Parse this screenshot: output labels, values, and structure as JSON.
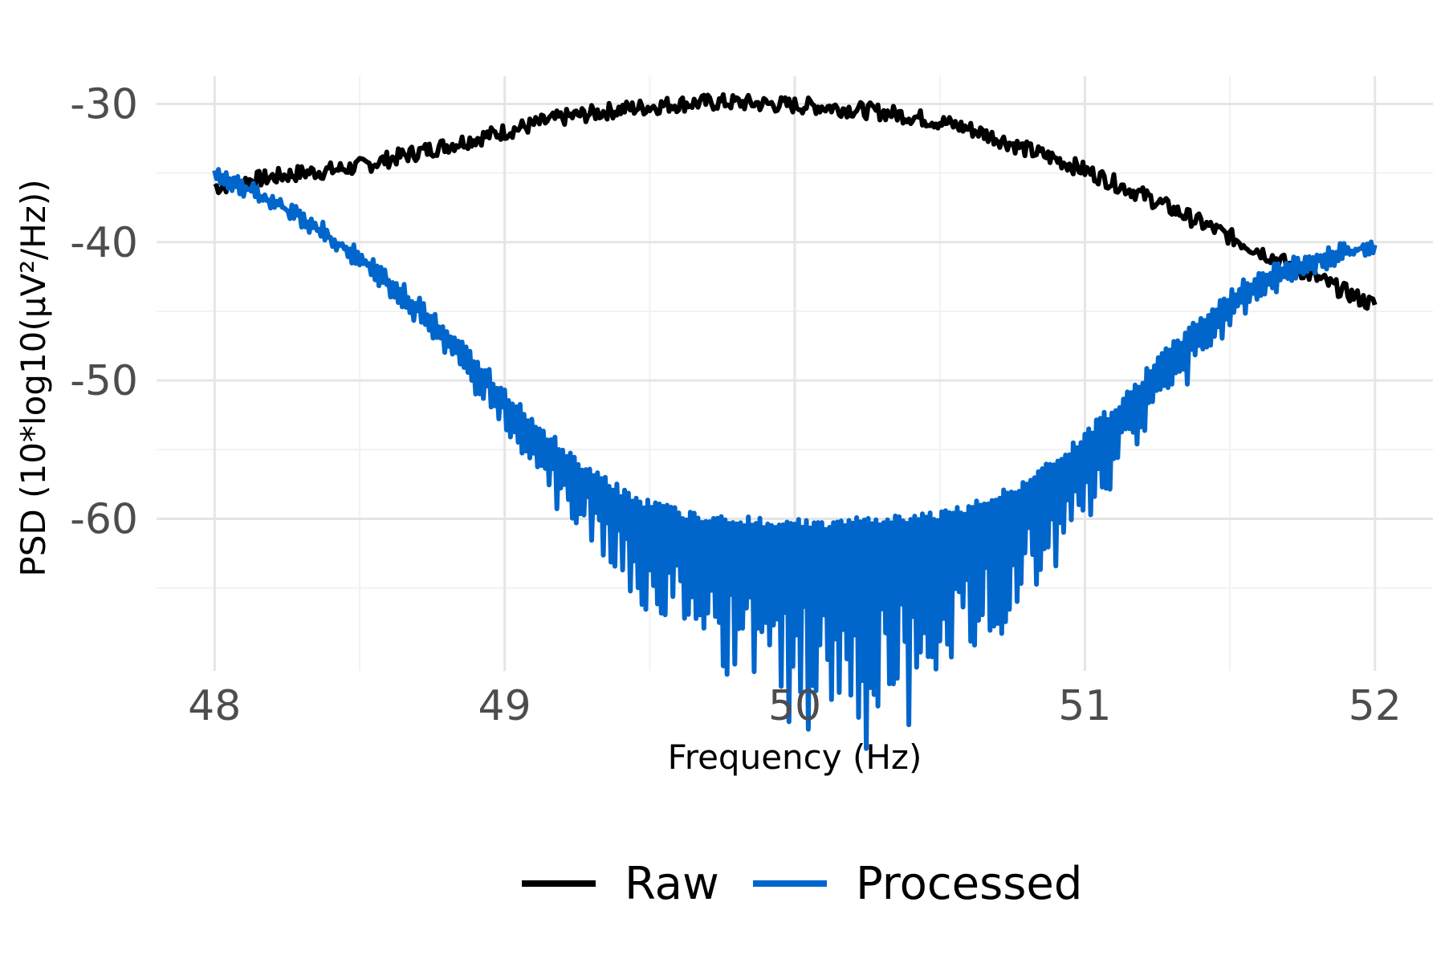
{
  "chart_data": {
    "type": "line",
    "title": "",
    "xlabel": "Frequency (Hz)",
    "ylabel": "PSD (10*log10(μV²/Hz))",
    "xlim": [
      47.8,
      52.2
    ],
    "ylim": [
      -71,
      -28
    ],
    "x_ticks": [
      48,
      49,
      50,
      51,
      52
    ],
    "x_tick_labels": [
      "48",
      "49",
      "50",
      "51",
      "52"
    ],
    "y_ticks": [
      -30,
      -40,
      -50,
      -60
    ],
    "y_tick_labels": [
      "-30",
      "-40",
      "-50",
      "-60"
    ],
    "x_minor_ticks": [
      48.5,
      49.5,
      50.5,
      51.5
    ],
    "y_minor_ticks": [
      -35,
      -45,
      -55,
      -65
    ],
    "grid": true,
    "legend_position": "bottom",
    "series": [
      {
        "name": "Raw",
        "color": "#000000",
        "x": [
          48.0,
          48.1,
          48.2,
          48.3,
          48.4,
          48.5,
          48.6,
          48.7,
          48.8,
          48.9,
          49.0,
          49.1,
          49.2,
          49.3,
          49.4,
          49.5,
          49.6,
          49.7,
          49.8,
          49.9,
          50.0,
          50.1,
          50.2,
          50.3,
          50.4,
          50.5,
          50.6,
          50.7,
          50.8,
          50.9,
          51.0,
          51.1,
          51.2,
          51.3,
          51.4,
          51.5,
          51.6,
          51.7,
          51.8,
          51.9,
          52.0
        ],
        "y": [
          -36.0,
          -35.6,
          -35.3,
          -35.0,
          -34.8,
          -34.5,
          -34.0,
          -33.5,
          -33.0,
          -32.5,
          -32.0,
          -31.5,
          -31.0,
          -30.7,
          -30.4,
          -30.2,
          -30.0,
          -29.9,
          -29.9,
          -30.0,
          -30.1,
          -30.2,
          -30.4,
          -30.6,
          -30.9,
          -31.3,
          -31.8,
          -32.5,
          -33.3,
          -34.0,
          -34.8,
          -35.7,
          -36.6,
          -37.6,
          -38.6,
          -39.6,
          -40.6,
          -41.6,
          -42.6,
          -43.6,
          -44.5
        ]
      },
      {
        "name": "Processed",
        "color": "#0066cc",
        "x": [
          48.0,
          48.1,
          48.2,
          48.3,
          48.4,
          48.5,
          48.6,
          48.7,
          48.8,
          48.9,
          49.0,
          49.1,
          49.2,
          49.3,
          49.4,
          49.5,
          49.6,
          49.7,
          49.8,
          49.9,
          50.0,
          50.1,
          50.2,
          50.3,
          50.4,
          50.5,
          50.6,
          50.7,
          50.8,
          50.9,
          51.0,
          51.1,
          51.2,
          51.3,
          51.4,
          51.5,
          51.6,
          51.7,
          51.8,
          51.9,
          52.0
        ],
        "y": [
          -35.0,
          -35.8,
          -36.8,
          -38.0,
          -39.3,
          -40.8,
          -42.5,
          -44.3,
          -46.3,
          -48.5,
          -50.8,
          -53.0,
          -55.0,
          -56.7,
          -58.0,
          -59.0,
          -59.6,
          -60.0,
          -60.2,
          -60.3,
          -60.4,
          -60.4,
          -60.3,
          -60.2,
          -60.0,
          -59.7,
          -59.2,
          -58.4,
          -57.3,
          -55.8,
          -54.0,
          -52.0,
          -49.8,
          -47.6,
          -45.6,
          -43.8,
          -42.4,
          -41.5,
          -40.9,
          -40.4,
          -40.0
        ]
      }
    ]
  }
}
